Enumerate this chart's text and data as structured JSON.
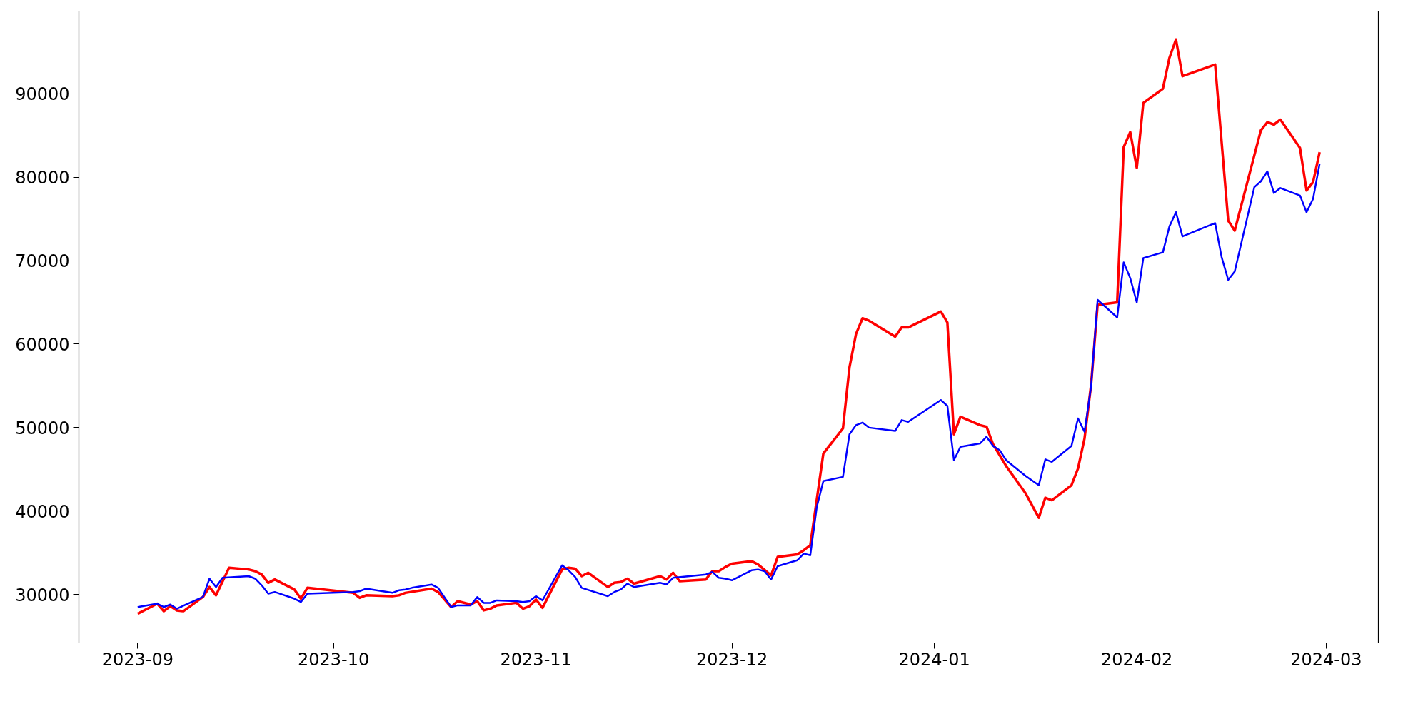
{
  "chart_data": {
    "type": "line",
    "xlim": [
      "2023-08-23",
      "2024-03-09"
    ],
    "ylim": [
      24200,
      99900
    ],
    "xticks": [
      "2023-09",
      "2023-10",
      "2023-11",
      "2023-12",
      "2024-01",
      "2024-02",
      "2024-03"
    ],
    "yticks": [
      30000,
      40000,
      50000,
      60000,
      70000,
      80000,
      90000
    ],
    "grid": false,
    "series": [
      {
        "color": "#ff0000",
        "x": [
          "2023-09-01",
          "2023-09-04",
          "2023-09-05",
          "2023-09-06",
          "2023-09-07",
          "2023-09-08",
          "2023-09-11",
          "2023-09-12",
          "2023-09-13",
          "2023-09-15",
          "2023-09-18",
          "2023-09-19",
          "2023-09-20",
          "2023-09-21",
          "2023-09-22",
          "2023-09-25",
          "2023-09-26",
          "2023-09-27",
          "2023-10-04",
          "2023-10-05",
          "2023-10-06",
          "2023-10-10",
          "2023-10-11",
          "2023-10-12",
          "2023-10-16",
          "2023-10-17",
          "2023-10-19",
          "2023-10-20",
          "2023-10-22",
          "2023-10-23",
          "2023-10-24",
          "2023-10-25",
          "2023-10-26",
          "2023-10-29",
          "2023-10-30",
          "2023-10-31",
          "2023-11-01",
          "2023-11-02",
          "2023-11-05",
          "2023-11-06",
          "2023-11-07",
          "2023-11-08",
          "2023-11-09",
          "2023-11-12",
          "2023-11-13",
          "2023-11-14",
          "2023-11-15",
          "2023-11-16",
          "2023-11-20",
          "2023-11-21",
          "2023-11-22",
          "2023-11-23",
          "2023-11-27",
          "2023-11-28",
          "2023-11-29",
          "2023-11-30",
          "2023-12-01",
          "2023-12-04",
          "2023-12-05",
          "2023-12-07",
          "2023-12-08",
          "2023-12-11",
          "2023-12-12",
          "2023-12-13",
          "2023-12-15",
          "2023-12-18",
          "2023-12-19",
          "2023-12-20",
          "2023-12-21",
          "2023-12-22",
          "2023-12-26",
          "2023-12-27",
          "2023-12-28",
          "2024-01-02",
          "2024-01-03",
          "2024-01-04",
          "2024-01-05",
          "2024-01-08",
          "2024-01-09",
          "2024-01-10",
          "2024-01-12",
          "2024-01-15",
          "2024-01-17",
          "2024-01-18",
          "2024-01-19",
          "2024-01-22",
          "2024-01-23",
          "2024-01-24",
          "2024-01-25",
          "2024-01-26",
          "2024-01-29",
          "2024-01-30",
          "2024-01-31",
          "2024-02-01",
          "2024-02-02",
          "2024-02-05",
          "2024-02-06",
          "2024-02-07",
          "2024-02-08",
          "2024-02-13",
          "2024-02-15",
          "2024-02-16",
          "2024-02-20",
          "2024-02-21",
          "2024-02-22",
          "2024-02-23",
          "2024-02-26",
          "2024-02-27",
          "2024-02-28",
          "2024-02-29"
        ],
        "values": [
          27700,
          28900,
          28000,
          28600,
          28100,
          28000,
          29700,
          30900,
          29900,
          33200,
          33000,
          32800,
          32400,
          31400,
          31800,
          30600,
          29500,
          30800,
          30200,
          29600,
          29900,
          29800,
          29900,
          30200,
          30700,
          30300,
          28500,
          29200,
          28800,
          29200,
          28100,
          28300,
          28700,
          29000,
          28300,
          28600,
          29400,
          28400,
          33000,
          33200,
          33100,
          32200,
          32600,
          30900,
          31400,
          31500,
          31900,
          31300,
          32200,
          31800,
          32600,
          31600,
          31800,
          32800,
          32800,
          33300,
          33700,
          34000,
          33600,
          32300,
          34500,
          34800,
          35300,
          35900,
          46900,
          49900,
          57200,
          61200,
          63100,
          62800,
          60900,
          62000,
          62000,
          63900,
          62600,
          49200,
          51300,
          50300,
          50100,
          48000,
          45400,
          42100,
          39200,
          41600,
          41300,
          43100,
          45100,
          48700,
          55100,
          64700,
          65000,
          83600,
          85400,
          81100,
          88900,
          90600,
          94300,
          96500,
          92100,
          93500,
          74800,
          73600,
          85600,
          86600,
          86300,
          86900,
          83500,
          78400,
          79400,
          83000
        ]
      },
      {
        "color": "#0000ff",
        "x": [
          "2023-09-01",
          "2023-09-04",
          "2023-09-05",
          "2023-09-06",
          "2023-09-07",
          "2023-09-11",
          "2023-09-12",
          "2023-09-13",
          "2023-09-14",
          "2023-09-18",
          "2023-09-19",
          "2023-09-20",
          "2023-09-21",
          "2023-09-22",
          "2023-09-25",
          "2023-09-26",
          "2023-09-27",
          "2023-10-04",
          "2023-10-05",
          "2023-10-06",
          "2023-10-10",
          "2023-10-11",
          "2023-10-12",
          "2023-10-13",
          "2023-10-16",
          "2023-10-17",
          "2023-10-19",
          "2023-10-20",
          "2023-10-22",
          "2023-10-23",
          "2023-10-24",
          "2023-10-25",
          "2023-10-26",
          "2023-10-29",
          "2023-10-30",
          "2023-10-31",
          "2023-11-01",
          "2023-11-02",
          "2023-11-05",
          "2023-11-06",
          "2023-11-07",
          "2023-11-08",
          "2023-11-12",
          "2023-11-13",
          "2023-11-14",
          "2023-11-15",
          "2023-11-16",
          "2023-11-20",
          "2023-11-21",
          "2023-11-22",
          "2023-11-27",
          "2023-11-28",
          "2023-11-29",
          "2023-11-30",
          "2023-12-01",
          "2023-12-04",
          "2023-12-05",
          "2023-12-06",
          "2023-12-07",
          "2023-12-08",
          "2023-12-11",
          "2023-12-12",
          "2023-12-13",
          "2023-12-14",
          "2023-12-15",
          "2023-12-18",
          "2023-12-19",
          "2023-12-20",
          "2023-12-21",
          "2023-12-22",
          "2023-12-26",
          "2023-12-27",
          "2023-12-28",
          "2024-01-02",
          "2024-01-03",
          "2024-01-04",
          "2024-01-05",
          "2024-01-08",
          "2024-01-09",
          "2024-01-10",
          "2024-01-11",
          "2024-01-12",
          "2024-01-15",
          "2024-01-17",
          "2024-01-18",
          "2024-01-19",
          "2024-01-22",
          "2024-01-23",
          "2024-01-24",
          "2024-01-25",
          "2024-01-26",
          "2024-01-29",
          "2024-01-30",
          "2024-01-31",
          "2024-02-01",
          "2024-02-02",
          "2024-02-05",
          "2024-02-06",
          "2024-02-07",
          "2024-02-08",
          "2024-02-13",
          "2024-02-14",
          "2024-02-15",
          "2024-02-16",
          "2024-02-19",
          "2024-02-20",
          "2024-02-21",
          "2024-02-22",
          "2024-02-23",
          "2024-02-26",
          "2024-02-27",
          "2024-02-28",
          "2024-02-29"
        ],
        "values": [
          28500,
          28900,
          28500,
          28800,
          28300,
          29700,
          31900,
          30900,
          32000,
          32200,
          31900,
          31100,
          30100,
          30300,
          29500,
          29100,
          30100,
          30300,
          30400,
          30700,
          30200,
          30500,
          30600,
          30800,
          31200,
          30800,
          28500,
          28700,
          28700,
          29700,
          29000,
          29000,
          29300,
          29200,
          29100,
          29200,
          29800,
          29300,
          33500,
          32900,
          32100,
          30800,
          29800,
          30300,
          30600,
          31300,
          30900,
          31400,
          31200,
          32000,
          32400,
          32700,
          32000,
          31900,
          31700,
          32900,
          33000,
          32800,
          31800,
          33400,
          34100,
          34900,
          34700,
          40500,
          43600,
          44100,
          49200,
          50300,
          50600,
          50000,
          49600,
          50900,
          50700,
          53300,
          52600,
          46100,
          47700,
          48100,
          48900,
          47800,
          47300,
          46100,
          44200,
          43100,
          46200,
          45900,
          47800,
          51100,
          49500,
          54900,
          65300,
          63200,
          69800,
          67900,
          65000,
          70300,
          71000,
          74100,
          75800,
          72900,
          74500,
          70400,
          67700,
          68700,
          78800,
          79500,
          80700,
          78100,
          78700,
          77800,
          75800,
          77400,
          81600
        ]
      }
    ]
  }
}
